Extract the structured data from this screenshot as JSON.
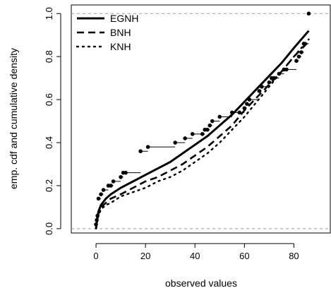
{
  "chart_data": {
    "type": "line",
    "xlabel": "observed values",
    "ylabel": "emp. cdf and cumulative density",
    "xlim": [
      -10,
      95
    ],
    "ylim": [
      -0.02,
      1.04
    ],
    "xticks": [
      0,
      20,
      40,
      60,
      80
    ],
    "yticks": [
      0.0,
      0.2,
      0.4,
      0.6,
      0.8,
      1.0
    ],
    "reference_lines_y": [
      0.0,
      1.0
    ],
    "legend_position": "top-left",
    "ecdf": {
      "x": [
        0,
        0.3,
        0.6,
        1,
        2,
        3,
        5,
        6,
        7,
        10,
        11,
        12,
        18,
        21,
        32,
        36,
        39,
        43,
        44,
        45,
        46,
        47,
        50,
        55,
        58,
        60,
        61,
        62,
        66,
        67,
        70,
        71,
        72,
        74,
        76,
        77,
        81,
        82,
        83,
        84,
        86
      ],
      "y": [
        0.02,
        0.04,
        0.06,
        0.14,
        0.16,
        0.18,
        0.2,
        0.2,
        0.22,
        0.24,
        0.26,
        0.26,
        0.36,
        0.38,
        0.4,
        0.42,
        0.44,
        0.44,
        0.46,
        0.46,
        0.48,
        0.5,
        0.52,
        0.54,
        0.54,
        0.56,
        0.58,
        0.6,
        0.64,
        0.66,
        0.68,
        0.7,
        0.7,
        0.72,
        0.74,
        0.74,
        0.78,
        0.8,
        0.82,
        0.86,
        1.0
      ]
    },
    "series": [
      {
        "name": "EGNH",
        "linestyle": "solid",
        "x": [
          0,
          0.5,
          1,
          2,
          4,
          6,
          10,
          15,
          20,
          25,
          30,
          35,
          40,
          45,
          50,
          55,
          60,
          65,
          70,
          75,
          80,
          86
        ],
        "y": [
          0.0,
          0.05,
          0.08,
          0.11,
          0.14,
          0.16,
          0.19,
          0.22,
          0.25,
          0.28,
          0.31,
          0.35,
          0.39,
          0.43,
          0.48,
          0.53,
          0.59,
          0.65,
          0.71,
          0.77,
          0.84,
          0.92
        ]
      },
      {
        "name": "BNH",
        "linestyle": "dashed",
        "x": [
          0,
          0.5,
          1,
          2,
          4,
          6,
          10,
          15,
          20,
          25,
          30,
          35,
          40,
          45,
          50,
          55,
          60,
          65,
          70,
          75,
          80,
          86
        ],
        "y": [
          0.0,
          0.04,
          0.07,
          0.1,
          0.12,
          0.14,
          0.16,
          0.19,
          0.22,
          0.24,
          0.27,
          0.3,
          0.34,
          0.38,
          0.43,
          0.48,
          0.55,
          0.61,
          0.67,
          0.73,
          0.8,
          0.87
        ]
      },
      {
        "name": "KNH",
        "linestyle": "dotted",
        "x": [
          0,
          0.5,
          1,
          2,
          4,
          6,
          10,
          15,
          20,
          25,
          30,
          35,
          40,
          45,
          50,
          55,
          60,
          65,
          70,
          75,
          80,
          86
        ],
        "y": [
          0.0,
          0.04,
          0.06,
          0.09,
          0.11,
          0.12,
          0.15,
          0.17,
          0.19,
          0.22,
          0.24,
          0.27,
          0.31,
          0.35,
          0.4,
          0.46,
          0.52,
          0.59,
          0.66,
          0.73,
          0.8,
          0.88
        ]
      }
    ]
  }
}
